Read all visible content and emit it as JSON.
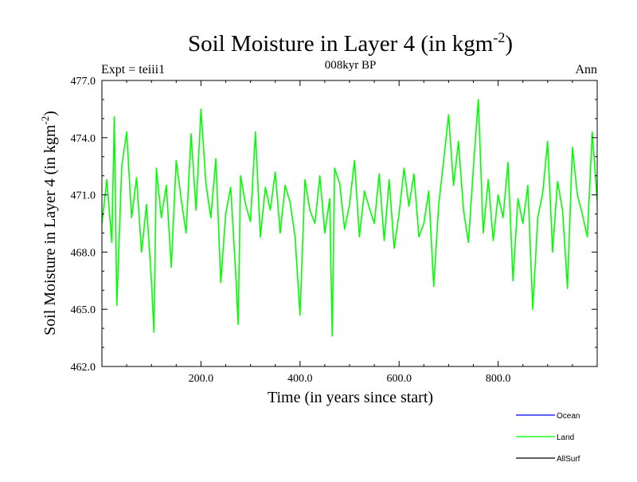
{
  "chart_data": {
    "type": "line",
    "title": "Soil Moisture in Layer 4 (in kgm",
    "title_sup": "-2",
    "title_close": ")",
    "subtitle_left": "Expt = teiii1",
    "subtitle_center": "008kyr BP",
    "subtitle_right": "Ann",
    "xlabel": "Time (in years since start)",
    "ylabel": "Soil Moisture in Layer 4 (in kgm",
    "ylabel_sup": "-2",
    "ylabel_close": ")",
    "xlim": [
      0,
      1000
    ],
    "ylim": [
      462,
      477
    ],
    "x_ticks": [
      200,
      400,
      600,
      800
    ],
    "x_tick_labels": [
      "200.0",
      "400.0",
      "600.0",
      "800.0"
    ],
    "y_ticks": [
      462,
      465,
      468,
      471,
      474,
      477
    ],
    "y_tick_labels": [
      "462.0",
      "465.0",
      "468.0",
      "471.0",
      "474.0",
      "477.0"
    ],
    "grid": false,
    "legend_position": "below-right",
    "series": [
      {
        "name": "Ocean",
        "color": "#0000ff",
        "x": [],
        "y": []
      },
      {
        "name": "Land",
        "color": "#00ff00",
        "x": [
          0,
          10,
          20,
          25,
          30,
          40,
          50,
          60,
          70,
          80,
          90,
          100,
          105,
          110,
          120,
          130,
          140,
          150,
          160,
          170,
          180,
          190,
          200,
          210,
          220,
          230,
          240,
          250,
          260,
          270,
          275,
          280,
          290,
          300,
          310,
          320,
          330,
          340,
          350,
          360,
          370,
          380,
          390,
          400,
          410,
          420,
          430,
          440,
          450,
          460,
          465,
          470,
          480,
          490,
          500,
          510,
          520,
          530,
          540,
          550,
          560,
          570,
          580,
          590,
          600,
          610,
          620,
          630,
          640,
          650,
          660,
          670,
          680,
          690,
          700,
          710,
          720,
          730,
          740,
          750,
          760,
          770,
          780,
          790,
          800,
          810,
          820,
          830,
          840,
          850,
          860,
          870,
          880,
          890,
          900,
          910,
          920,
          930,
          940,
          950,
          960,
          970,
          980,
          990,
          1000
        ],
        "y": [
          469.5,
          471.8,
          468.5,
          475.1,
          465.2,
          472.5,
          474.3,
          469.8,
          471.9,
          468.0,
          470.5,
          466.5,
          463.8,
          472.4,
          469.8,
          471.5,
          467.2,
          472.8,
          470.8,
          469.0,
          474.2,
          470.2,
          475.5,
          471.6,
          469.8,
          472.9,
          466.4,
          470.0,
          471.4,
          467.0,
          464.2,
          472.0,
          470.5,
          469.6,
          474.3,
          468.8,
          471.4,
          470.2,
          472.2,
          469.0,
          471.5,
          470.6,
          468.8,
          464.7,
          471.8,
          470.2,
          469.5,
          472.0,
          469.0,
          470.8,
          463.6,
          472.4,
          471.6,
          469.2,
          470.5,
          472.8,
          468.8,
          471.2,
          470.3,
          469.5,
          472.1,
          468.6,
          471.8,
          468.2,
          470.0,
          472.4,
          470.4,
          472.1,
          468.8,
          469.5,
          471.2,
          466.2,
          470.5,
          472.8,
          475.2,
          471.5,
          473.8,
          470.2,
          468.5,
          472.4,
          476.0,
          469.0,
          471.8,
          468.6,
          471.0,
          469.8,
          472.7,
          466.5,
          470.8,
          469.5,
          471.5,
          465.0,
          469.8,
          471.1,
          473.8,
          468.0,
          471.7,
          470.2,
          466.1,
          473.5,
          471.0,
          470.0,
          468.8,
          474.3,
          470.7
        ]
      },
      {
        "name": "AllSurf",
        "color": "#000000",
        "x": [],
        "y": []
      }
    ]
  }
}
